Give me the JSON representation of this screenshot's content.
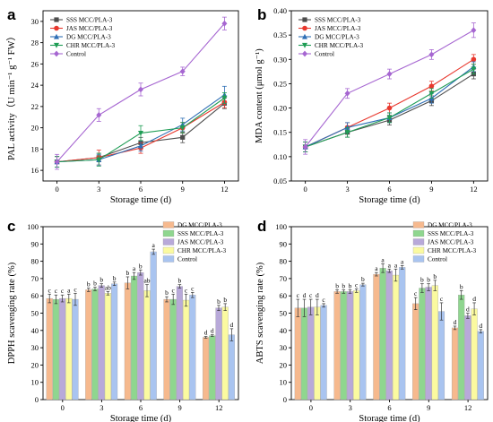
{
  "panels": [
    {
      "letter": "a",
      "type": "line",
      "xlabel": "Storage time (d)",
      "ylabel": "PAL activity（U min⁻¹ g⁻¹ FW）",
      "x": [
        0,
        3,
        6,
        9,
        12
      ],
      "xlim": [
        -1,
        13
      ],
      "ylim": [
        15,
        31
      ],
      "yticks": [
        16,
        18,
        20,
        22,
        24,
        26,
        28,
        30
      ],
      "legend_position": "top-left",
      "series": [
        {
          "name": "SSS MCC/PLA-3",
          "color": "#4d4d4d",
          "marker": "square",
          "values": [
            16.8,
            17.2,
            18.6,
            19.1,
            22.3
          ],
          "errors": [
            0.5,
            0.4,
            0.5,
            0.5,
            0.5
          ]
        },
        {
          "name": "JAS MCC/PLA-3",
          "color": "#e8382e",
          "marker": "circle",
          "values": [
            16.8,
            17.2,
            18.1,
            20.0,
            22.4
          ],
          "errors": [
            0.5,
            0.7,
            0.5,
            0.5,
            0.5
          ]
        },
        {
          "name": "DG MCC/PLA-3",
          "color": "#2f6fb5",
          "marker": "triangle-up",
          "values": [
            16.8,
            17.0,
            18.3,
            20.3,
            23.1
          ],
          "errors": [
            0.5,
            0.5,
            0.5,
            0.6,
            0.8
          ]
        },
        {
          "name": "CHR MCC/PLA-3",
          "color": "#1f9d55",
          "marker": "triangle-down",
          "values": [
            16.8,
            17.0,
            19.5,
            20.0,
            22.8
          ],
          "errors": [
            0.5,
            0.6,
            0.7,
            0.5,
            0.5
          ]
        },
        {
          "name": "Control",
          "color": "#a666d1",
          "marker": "diamond",
          "values": [
            16.8,
            21.2,
            23.6,
            25.3,
            29.8
          ],
          "errors": [
            0.7,
            0.6,
            0.6,
            0.4,
            0.6
          ]
        }
      ]
    },
    {
      "letter": "b",
      "type": "line",
      "xlabel": "Storage time (d)",
      "ylabel": "MDA content (μmol g⁻¹)",
      "x": [
        0,
        3,
        6,
        9,
        12
      ],
      "xlim": [
        -1,
        13
      ],
      "ylim": [
        0.05,
        0.4
      ],
      "yticks": [
        0.05,
        0.1,
        0.15,
        0.2,
        0.25,
        0.3,
        0.35,
        0.4
      ],
      "yticklabels": [
        "0.05",
        "0.10",
        "0.15",
        "0.20",
        "0.25",
        "0.30",
        "0.35",
        "0.40"
      ],
      "legend_position": "top-left",
      "series": [
        {
          "name": "SSS MCC/PLA-3",
          "color": "#4d4d4d",
          "marker": "square",
          "values": [
            0.12,
            0.15,
            0.175,
            0.215,
            0.27
          ],
          "errors": [
            0.01,
            0.01,
            0.01,
            0.01,
            0.01
          ]
        },
        {
          "name": "JAS MCC/PLA-3",
          "color": "#e8382e",
          "marker": "circle",
          "values": [
            0.12,
            0.16,
            0.2,
            0.245,
            0.3
          ],
          "errors": [
            0.01,
            0.01,
            0.01,
            0.01,
            0.01
          ]
        },
        {
          "name": "DG MCC/PLA-3",
          "color": "#2f6fb5",
          "marker": "triangle-up",
          "values": [
            0.12,
            0.16,
            0.18,
            0.22,
            0.285
          ],
          "errors": [
            0.01,
            0.01,
            0.01,
            0.01,
            0.01
          ]
        },
        {
          "name": "CHR MCC/PLA-3",
          "color": "#1f9d55",
          "marker": "triangle-down",
          "values": [
            0.12,
            0.15,
            0.18,
            0.23,
            0.28
          ],
          "errors": [
            0.01,
            0.01,
            0.01,
            0.01,
            0.01
          ]
        },
        {
          "name": "Control",
          "color": "#a666d1",
          "marker": "diamond",
          "values": [
            0.12,
            0.23,
            0.27,
            0.31,
            0.36
          ],
          "errors": [
            0.015,
            0.01,
            0.01,
            0.01,
            0.015
          ]
        }
      ]
    },
    {
      "letter": "c",
      "type": "bar",
      "xlabel": "Storage time (d)",
      "ylabel": "DPPH scavenging rate (%)",
      "categories": [
        "0",
        "3",
        "6",
        "9",
        "12"
      ],
      "ylim": [
        0,
        100
      ],
      "yticks": [
        0,
        10,
        20,
        30,
        40,
        50,
        60,
        70,
        80,
        90,
        100
      ],
      "legend_position": "top-right",
      "series": [
        {
          "name": "DG MCC/PLA-3",
          "color": "#f6b98e",
          "values": [
            58.5,
            63.5,
            67.5,
            58.0,
            36.0
          ],
          "errors": [
            2.5,
            1.0,
            3.5,
            1.5,
            0.5
          ],
          "letters": [
            "c",
            "b",
            "b",
            "b",
            "d"
          ]
        },
        {
          "name": "SSS MCC/PLA-3",
          "color": "#8fd68f",
          "values": [
            58.0,
            64.0,
            71.5,
            58.0,
            37.0
          ],
          "errors": [
            2.5,
            1.0,
            2.0,
            3.0,
            0.5
          ],
          "letters": [
            "c",
            "b",
            "a",
            "c",
            "d"
          ]
        },
        {
          "name": "JAS MCC/PLA-3",
          "color": "#b8a9d9",
          "values": [
            58.5,
            66.0,
            73.5,
            65.5,
            53.0
          ],
          "errors": [
            2.0,
            1.0,
            1.5,
            1.0,
            1.5
          ],
          "letters": [
            "c",
            "b",
            "b",
            "b",
            "b"
          ]
        },
        {
          "name": "CHR MCC/PLA-3",
          "color": "#fbfaa0",
          "values": [
            58.5,
            61.5,
            63.0,
            57.5,
            53.5
          ],
          "errors": [
            2.5,
            1.0,
            3.5,
            3.5,
            2.0
          ],
          "letters": [
            "a",
            "ab",
            "ab",
            "c",
            "b"
          ]
        },
        {
          "name": "Control",
          "color": "#a9c4f0",
          "values": [
            58.0,
            67.0,
            85.5,
            60.5,
            37.5
          ],
          "errors": [
            3.5,
            1.0,
            1.5,
            1.5,
            3.5
          ],
          "letters": [
            "c",
            "b",
            "a",
            "c",
            "d"
          ]
        }
      ]
    },
    {
      "letter": "d",
      "type": "bar",
      "xlabel": "Storage time (d)",
      "ylabel": "ABTS scavenging rate (%)",
      "categories": [
        "0",
        "3",
        "6",
        "9",
        "12"
      ],
      "ylim": [
        0,
        100
      ],
      "yticks": [
        0,
        10,
        20,
        30,
        40,
        50,
        60,
        70,
        80,
        90,
        100
      ],
      "legend_position": "top-right",
      "series": [
        {
          "name": "DG MCC/PLA-3",
          "color": "#f6b98e",
          "values": [
            53.0,
            62.5,
            72.5,
            55.5,
            41.5
          ],
          "errors": [
            5.0,
            1.0,
            1.0,
            3.5,
            1.0
          ],
          "letters": [
            "c",
            "b",
            "a",
            "c",
            "d"
          ]
        },
        {
          "name": "SSS MCC/PLA-3",
          "color": "#8fd68f",
          "values": [
            53.0,
            62.5,
            76.0,
            64.5,
            60.5
          ],
          "errors": [
            5.0,
            1.0,
            2.5,
            2.5,
            2.5
          ],
          "letters": [
            "d",
            "b",
            "a",
            "b",
            "b"
          ]
        },
        {
          "name": "JAS MCC/PLA-3",
          "color": "#b8a9d9",
          "values": [
            53.5,
            62.5,
            74.5,
            65.0,
            48.5
          ],
          "errors": [
            4.5,
            1.0,
            1.0,
            2.0,
            1.5
          ],
          "letters": [
            "c",
            "b",
            "a",
            "b",
            "d"
          ]
        },
        {
          "name": "CHR MCC/PLA-3",
          "color": "#fbfaa0",
          "values": [
            53.5,
            63.0,
            72.0,
            66.0,
            52.5
          ],
          "errors": [
            4.5,
            1.0,
            3.5,
            3.0,
            3.5
          ],
          "letters": [
            "d",
            "c",
            "a",
            "b",
            "d"
          ]
        },
        {
          "name": "Control",
          "color": "#a9c4f0",
          "values": [
            54.5,
            66.5,
            76.5,
            51.0,
            39.5
          ],
          "errors": [
            1.0,
            0.8,
            1.0,
            5.0,
            1.0
          ],
          "letters": [
            "c",
            "b",
            "a",
            "c",
            "d"
          ]
        }
      ]
    }
  ]
}
